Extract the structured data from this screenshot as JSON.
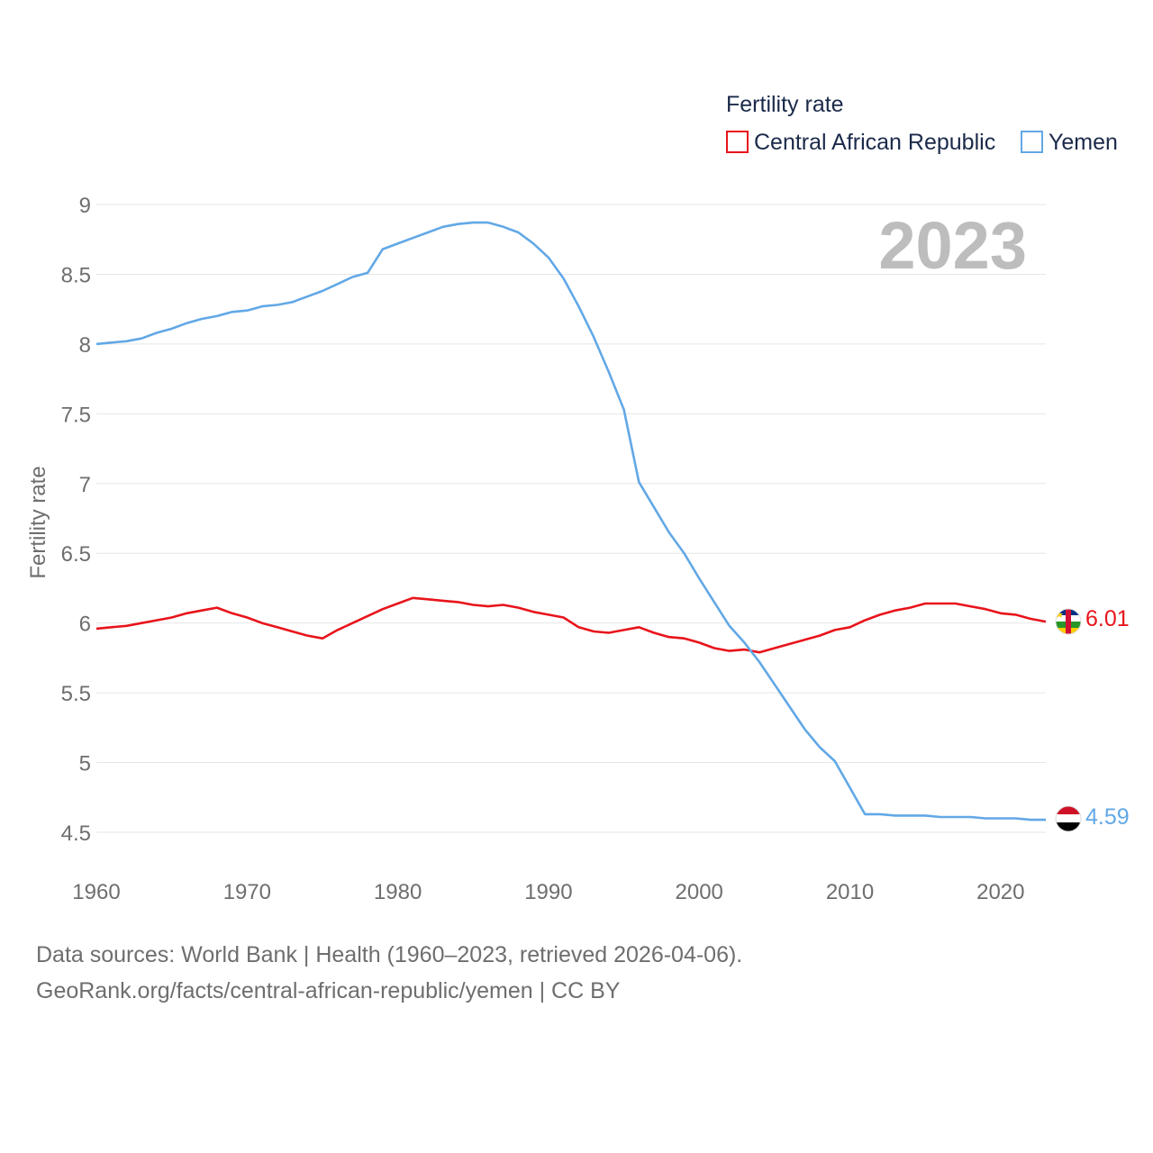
{
  "legend": {
    "title": "Fertility rate",
    "items": [
      {
        "label": "Central African Republic",
        "color": "#e8141b"
      },
      {
        "label": "Yemen",
        "color": "#62a8e6"
      }
    ]
  },
  "year_label": "2023",
  "footer": {
    "line1": "Data sources: World Bank | Health (1960–2023, retrieved 2026-04-06).",
    "line2": "GeoRank.org/facts/central-african-republic/yemen | CC BY"
  },
  "chart_data": {
    "type": "line",
    "title": "Fertility rate",
    "xlabel": "",
    "ylabel": "Fertility rate",
    "xlim": [
      1960,
      2023
    ],
    "ylim": [
      4.5,
      9
    ],
    "x_ticks": [
      "1960",
      "1970",
      "1980",
      "1990",
      "2000",
      "2010",
      "2020"
    ],
    "y_ticks": [
      "4.5",
      "5",
      "5.5",
      "6",
      "6.5",
      "7",
      "7.5",
      "8",
      "8.5",
      "9"
    ],
    "grid": true,
    "legend_position": "top-right",
    "x": [
      1960,
      1961,
      1962,
      1963,
      1964,
      1965,
      1966,
      1967,
      1968,
      1969,
      1970,
      1971,
      1972,
      1973,
      1974,
      1975,
      1976,
      1977,
      1978,
      1979,
      1980,
      1981,
      1982,
      1983,
      1984,
      1985,
      1986,
      1987,
      1988,
      1989,
      1990,
      1991,
      1992,
      1993,
      1994,
      1995,
      1996,
      1997,
      1998,
      1999,
      2000,
      2001,
      2002,
      2003,
      2004,
      2005,
      2006,
      2007,
      2008,
      2009,
      2010,
      2011,
      2012,
      2013,
      2014,
      2015,
      2016,
      2017,
      2018,
      2019,
      2020,
      2021,
      2022,
      2023
    ],
    "series": [
      {
        "name": "Central African Republic",
        "color": "#e8141b",
        "end_label": "6.01",
        "values": [
          5.96,
          5.97,
          5.98,
          6.0,
          6.02,
          6.04,
          6.07,
          6.09,
          6.11,
          6.07,
          6.04,
          6.0,
          5.97,
          5.94,
          5.91,
          5.89,
          5.95,
          6.0,
          6.05,
          6.1,
          6.14,
          6.18,
          6.17,
          6.16,
          6.15,
          6.13,
          6.12,
          6.13,
          6.11,
          6.08,
          6.06,
          6.04,
          5.97,
          5.94,
          5.93,
          5.95,
          5.97,
          5.93,
          5.9,
          5.89,
          5.86,
          5.82,
          5.8,
          5.81,
          5.79,
          5.82,
          5.85,
          5.88,
          5.91,
          5.95,
          5.97,
          6.02,
          6.06,
          6.09,
          6.11,
          6.14,
          6.14,
          6.14,
          6.12,
          6.1,
          6.07,
          6.06,
          6.03,
          6.01
        ]
      },
      {
        "name": "Yemen",
        "color": "#62a8e6",
        "end_label": "4.59",
        "values": [
          8.0,
          8.01,
          8.02,
          8.04,
          8.08,
          8.11,
          8.15,
          8.18,
          8.2,
          8.23,
          8.24,
          8.27,
          8.28,
          8.3,
          8.34,
          8.38,
          8.43,
          8.48,
          8.51,
          8.68,
          8.72,
          8.76,
          8.8,
          8.84,
          8.86,
          8.87,
          8.87,
          8.84,
          8.8,
          8.72,
          8.62,
          8.47,
          8.27,
          8.05,
          7.8,
          7.53,
          7.01,
          6.83,
          6.65,
          6.5,
          6.32,
          6.15,
          5.98,
          5.86,
          5.72,
          5.56,
          5.4,
          5.24,
          5.11,
          5.01,
          4.82,
          4.63,
          4.63,
          4.62,
          4.62,
          4.62,
          4.61,
          4.61,
          4.61,
          4.6,
          4.6,
          4.6,
          4.59,
          4.59
        ]
      }
    ]
  }
}
